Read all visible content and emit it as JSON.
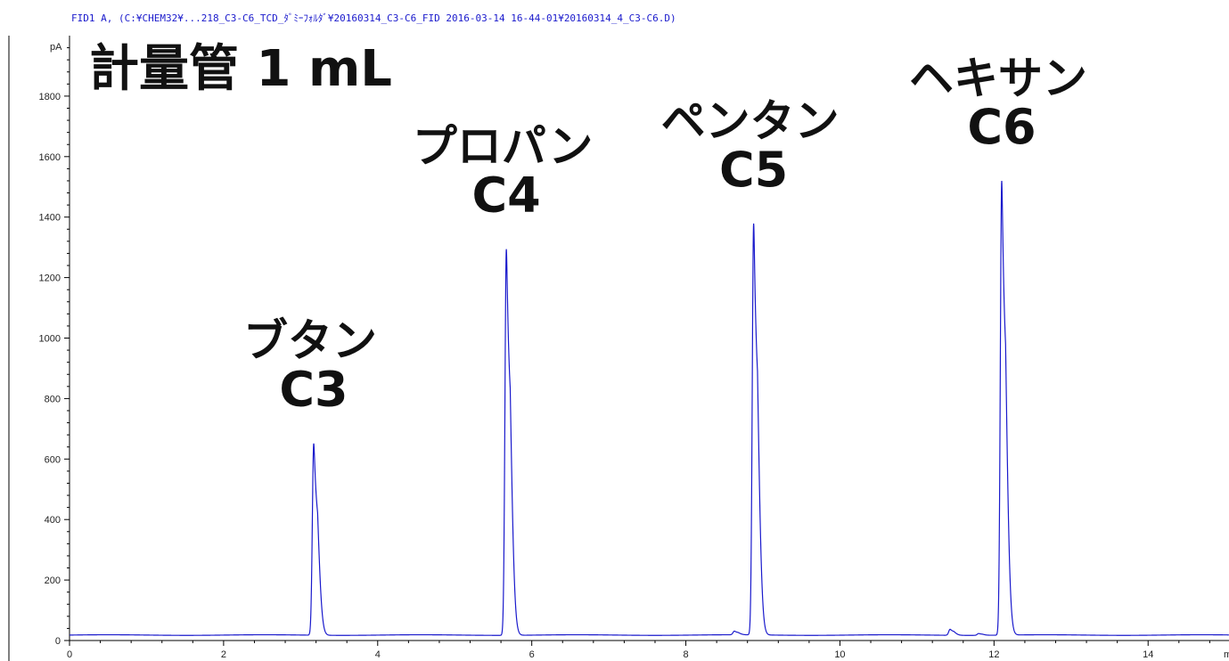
{
  "header": {
    "file_info": "FID1 A, (C:¥CHEM32¥...218_C3-C6_TCD_ﾀﾞﾐｰﾌｫﾙﾀﾞ¥20160314_C3-C6_FID 2016-03-14 16-44-01¥20160314_4_C3-C6.D)"
  },
  "title": "計量管 1 mL",
  "chart_data": {
    "type": "line",
    "title": "計量管 1 mL",
    "ylabel": "pA",
    "xlabel": "m",
    "xlim": [
      0,
      15.05
    ],
    "ylim": [
      0,
      2000
    ],
    "x_ticks": [
      0,
      2,
      4,
      6,
      8,
      10,
      12,
      14
    ],
    "y_ticks": [
      0,
      200,
      400,
      600,
      800,
      1000,
      1200,
      1400,
      1600,
      1800
    ],
    "baseline": 18,
    "series": [
      {
        "color": "#1a1acc",
        "peaks": [
          {
            "rt": 3.17,
            "height": 652,
            "name": "ブタン",
            "code": "C3"
          },
          {
            "rt": 5.67,
            "height": 1295,
            "name": "プロパン",
            "code": "C4"
          },
          {
            "rt": 8.88,
            "height": 1378,
            "name": "ペンタン",
            "code": "C5"
          },
          {
            "rt": 12.1,
            "height": 1520,
            "name": "ヘキサン",
            "code": "C6"
          },
          {
            "rt": 8.63,
            "height": 30,
            "name": "",
            "code": ""
          },
          {
            "rt": 11.43,
            "height": 38,
            "name": "",
            "code": ""
          },
          {
            "rt": 11.8,
            "height": 24,
            "name": "",
            "code": ""
          }
        ]
      }
    ]
  }
}
